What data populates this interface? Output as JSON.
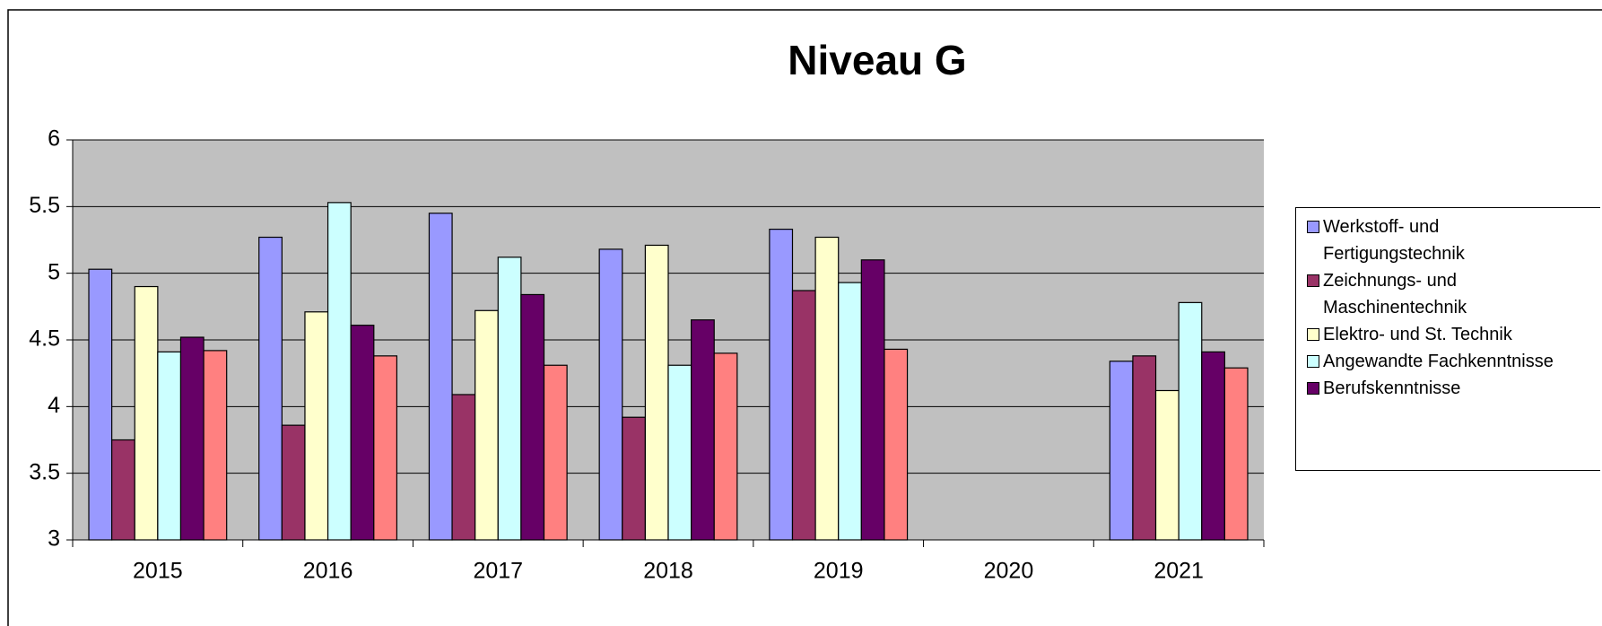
{
  "chart_data": {
    "type": "bar",
    "title": "Niveau G",
    "categories": [
      "2015",
      "2016",
      "2017",
      "2018",
      "2019",
      "2020",
      "2021"
    ],
    "series": [
      {
        "name": "Werkstoff- und Fertigungstechnik",
        "color": "#9999ff",
        "values": [
          5.03,
          5.27,
          5.45,
          5.18,
          5.33,
          null,
          4.34
        ]
      },
      {
        "name": "Zeichnungs- und Maschinentechnik",
        "color": "#993366",
        "values": [
          3.75,
          3.86,
          4.09,
          3.92,
          4.87,
          null,
          4.38
        ]
      },
      {
        "name": "Elektro- und St. Technik",
        "color": "#ffffcc",
        "values": [
          4.9,
          4.71,
          4.72,
          5.21,
          5.27,
          null,
          4.12
        ]
      },
      {
        "name": "Angewandte Fachkenntnisse",
        "color": "#ccffff",
        "values": [
          4.41,
          5.53,
          5.12,
          4.31,
          4.93,
          null,
          4.78
        ]
      },
      {
        "name": "Berufskenntnisse",
        "color": "#660066",
        "values": [
          4.52,
          4.61,
          4.84,
          4.65,
          5.1,
          null,
          4.41
        ]
      },
      {
        "color": "#ff8080",
        "values": [
          4.42,
          4.38,
          4.31,
          4.4,
          4.43,
          null,
          4.29
        ]
      }
    ],
    "ylim": [
      3,
      6
    ],
    "yticks": [
      3,
      3.5,
      4,
      4.5,
      5,
      5.5,
      6
    ],
    "grid": true,
    "legend": "right"
  }
}
